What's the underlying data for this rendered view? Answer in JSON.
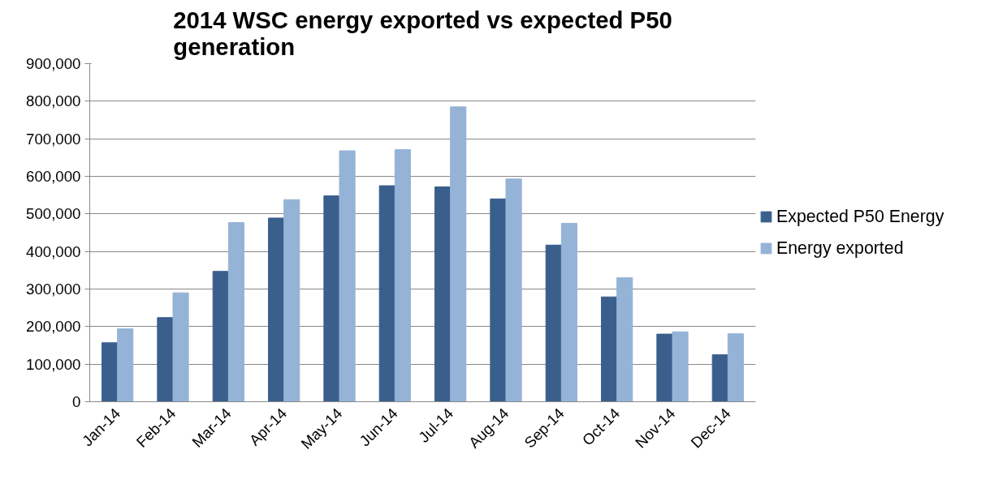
{
  "chart_data": {
    "type": "bar",
    "title": "2014 WSC energy exported vs expected P50 generation",
    "categories": [
      "Jan-14",
      "Feb-14",
      "Mar-14",
      "Apr-14",
      "May-14",
      "Jun-14",
      "Jul-14",
      "Aug-14",
      "Sep-14",
      "Oct-14",
      "Nov-14",
      "Dec-14"
    ],
    "series": [
      {
        "name": "Expected P50 Energy",
        "color": "#3a5f8c",
        "values": [
          157000,
          224000,
          347000,
          489000,
          548000,
          575000,
          572000,
          540000,
          417000,
          279000,
          180000,
          125000
        ]
      },
      {
        "name": "Energy exported",
        "color": "#95b3d7",
        "values": [
          194000,
          290000,
          477000,
          538000,
          668000,
          671000,
          785000,
          593000,
          475000,
          330000,
          186000,
          181000
        ]
      }
    ],
    "ylim": [
      0,
      900000
    ],
    "yticks": [
      {
        "value": 0,
        "label": "0"
      },
      {
        "value": 100000,
        "label": "100,000"
      },
      {
        "value": 200000,
        "label": "200,000"
      },
      {
        "value": 300000,
        "label": "300,000"
      },
      {
        "value": 400000,
        "label": "400,000"
      },
      {
        "value": 500000,
        "label": "500,000"
      },
      {
        "value": 600000,
        "label": "600,000"
      },
      {
        "value": 700000,
        "label": "700,000"
      },
      {
        "value": 800000,
        "label": "800,000"
      },
      {
        "value": 900000,
        "label": "900,000"
      }
    ],
    "grid": "y",
    "legend": "right"
  }
}
